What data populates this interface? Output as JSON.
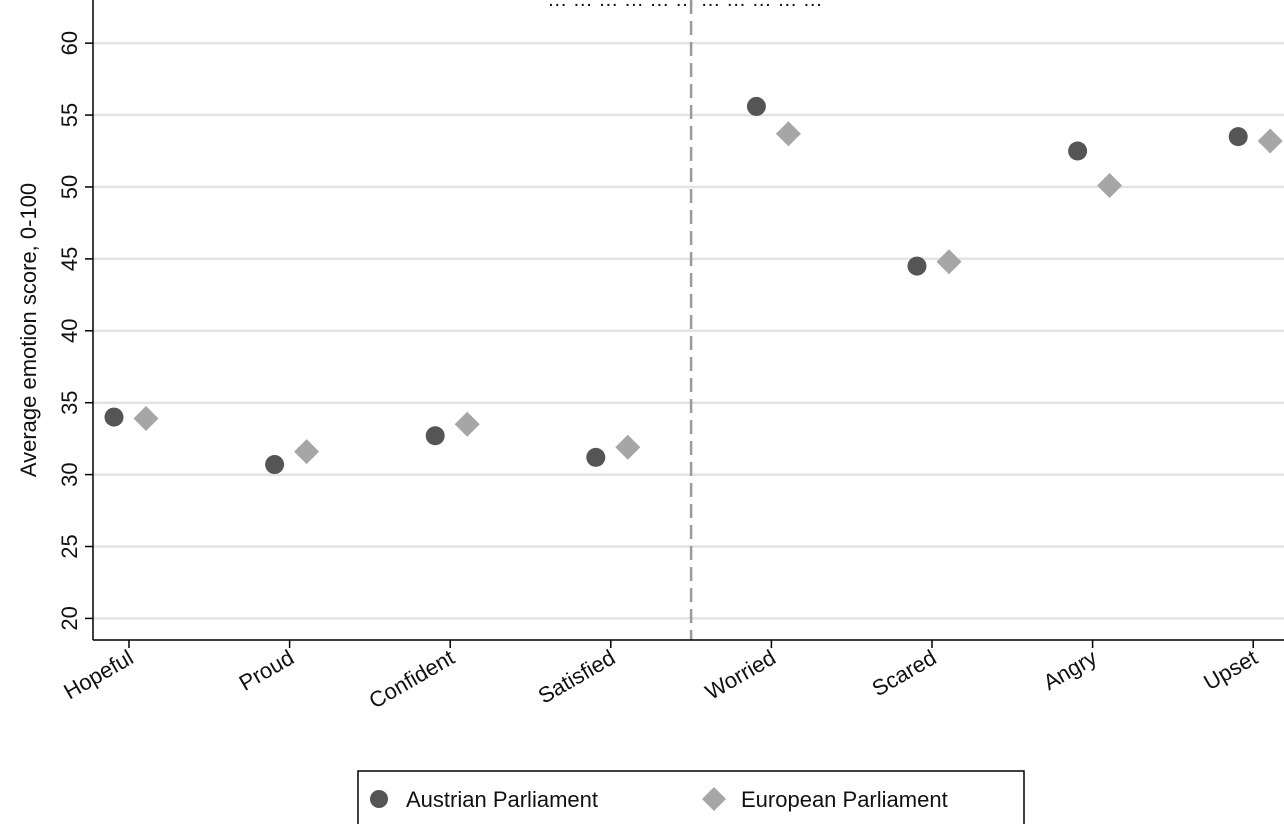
{
  "chart_data": {
    "type": "scatter",
    "title": "… … … … … … … … … … …",
    "ylabel": "Average emotion score, 0-100",
    "xlabel": "",
    "ylim": [
      18.5,
      63
    ],
    "yticks": [
      20,
      25,
      30,
      35,
      40,
      45,
      50,
      55,
      60
    ],
    "grid": true,
    "legend_position": "bottom",
    "categories": [
      "Hopeful",
      "Proud",
      "Confident",
      "Satisfied",
      "Worried",
      "Scared",
      "Angry",
      "Upset"
    ],
    "divider_between": [
      "Satisfied",
      "Worried"
    ],
    "series": [
      {
        "name": "Austrian Parliament",
        "marker": "circle",
        "color": "#555555",
        "values": [
          34.0,
          30.7,
          32.7,
          31.2,
          55.6,
          44.5,
          52.5,
          53.5
        ]
      },
      {
        "name": "European Parliament",
        "marker": "diamond",
        "color": "#a6a6a6",
        "values": [
          33.9,
          31.6,
          33.5,
          31.9,
          53.7,
          44.8,
          50.1,
          53.2
        ]
      }
    ]
  }
}
